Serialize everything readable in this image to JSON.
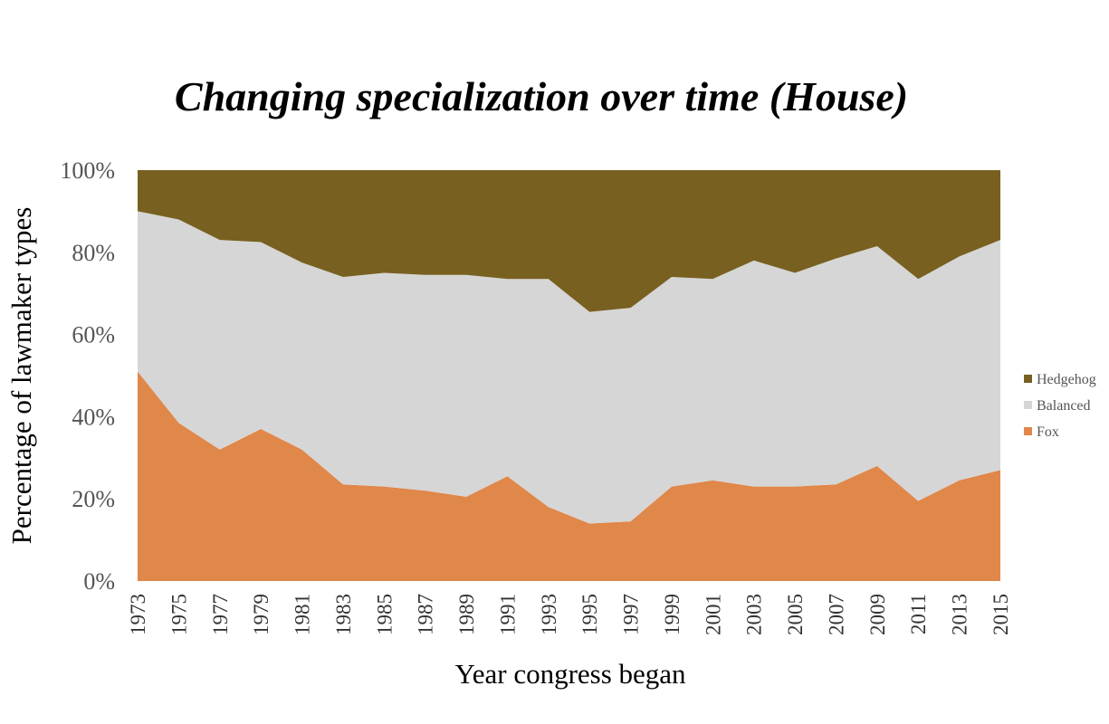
{
  "chart_data": {
    "type": "area",
    "stacked": true,
    "normalized": true,
    "title": "Changing specialization over time (House)",
    "xlabel": "Year congress began",
    "ylabel": "Percentage of lawmaker types",
    "x": [
      "1973",
      "1975",
      "1977",
      "1979",
      "1981",
      "1983",
      "1985",
      "1987",
      "1989",
      "1991",
      "1993",
      "1995",
      "1997",
      "1999",
      "2001",
      "2003",
      "2005",
      "2007",
      "2009",
      "2011",
      "2013",
      "2015"
    ],
    "yticks": [
      "0%",
      "20%",
      "40%",
      "60%",
      "80%",
      "100%"
    ],
    "ylim": [
      0,
      100
    ],
    "grid": false,
    "legend_position": "right",
    "series": [
      {
        "name": "Fox",
        "color": "#e0874a",
        "values": [
          51,
          38.5,
          32,
          37,
          32,
          23.5,
          23,
          22,
          20.5,
          25.5,
          18,
          14,
          14.5,
          23,
          24.5,
          23,
          23,
          23.5,
          28,
          19.5,
          24.5,
          27
        ]
      },
      {
        "name": "Balanced",
        "color": "#d6d6d6",
        "values": [
          39,
          49.5,
          51,
          45.5,
          45.5,
          50.5,
          52,
          52.5,
          54,
          48,
          55.5,
          51.5,
          52,
          51,
          49,
          55,
          52,
          55,
          53.5,
          54,
          54.5,
          56
        ]
      },
      {
        "name": "Hedgehog",
        "color": "#786020",
        "values": [
          10,
          12,
          17,
          17.5,
          22.5,
          26,
          25,
          25.5,
          25.5,
          26.5,
          26.5,
          34.5,
          33.5,
          26,
          26.5,
          22,
          25,
          21.5,
          18.5,
          26.5,
          21,
          17
        ]
      }
    ],
    "legend_order": [
      "Hedgehog",
      "Balanced",
      "Fox"
    ]
  }
}
